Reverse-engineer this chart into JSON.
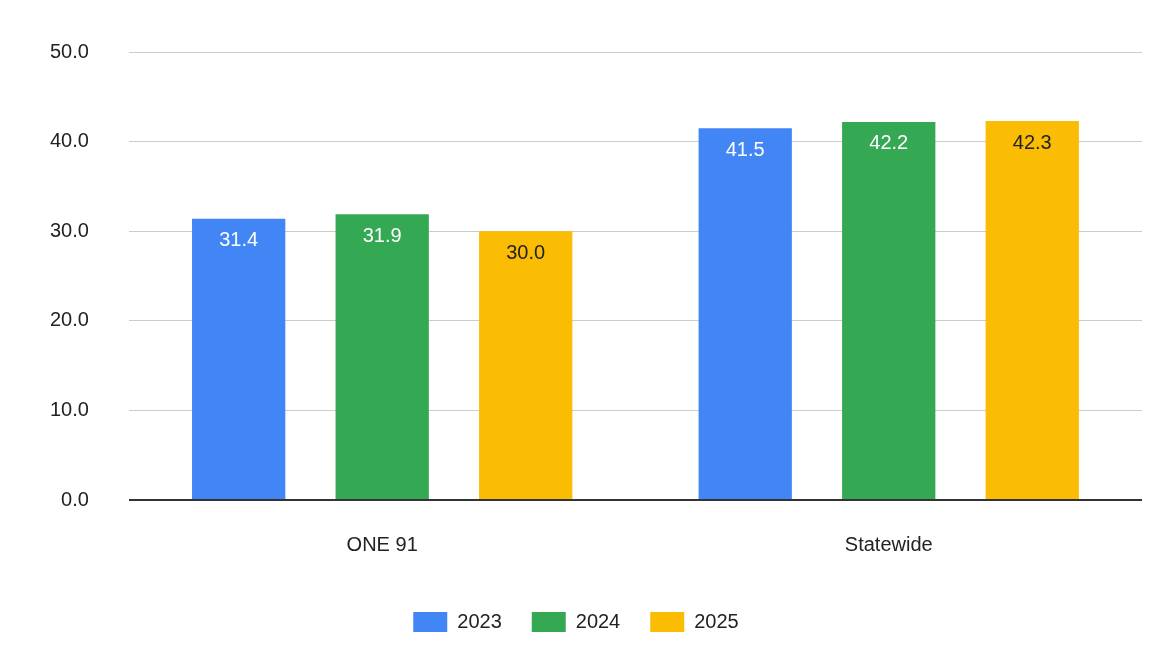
{
  "chart_data": {
    "type": "bar",
    "categories": [
      "ONE 91",
      "Statewide"
    ],
    "series": [
      {
        "name": "2023",
        "color": "#4285f4",
        "values": [
          31.4,
          41.5
        ],
        "value_labels": [
          "31.4",
          "41.5"
        ]
      },
      {
        "name": "2024",
        "color": "#34a853",
        "values": [
          31.9,
          42.2
        ],
        "value_labels": [
          "31.9",
          "42.2"
        ]
      },
      {
        "name": "2025",
        "color": "#fbbc04",
        "values": [
          30.0,
          42.3
        ],
        "value_labels": [
          "30.0",
          "42.3"
        ]
      }
    ],
    "ylim": [
      0,
      50
    ],
    "yticks": [
      {
        "value": 0,
        "label": "0.0"
      },
      {
        "value": 10,
        "label": "10.0"
      },
      {
        "value": 20,
        "label": "20.0"
      },
      {
        "value": 30,
        "label": "30.0"
      },
      {
        "value": 40,
        "label": "40.0"
      },
      {
        "value": 50,
        "label": "50.0"
      }
    ],
    "grid": "y",
    "legend": "bottom"
  }
}
